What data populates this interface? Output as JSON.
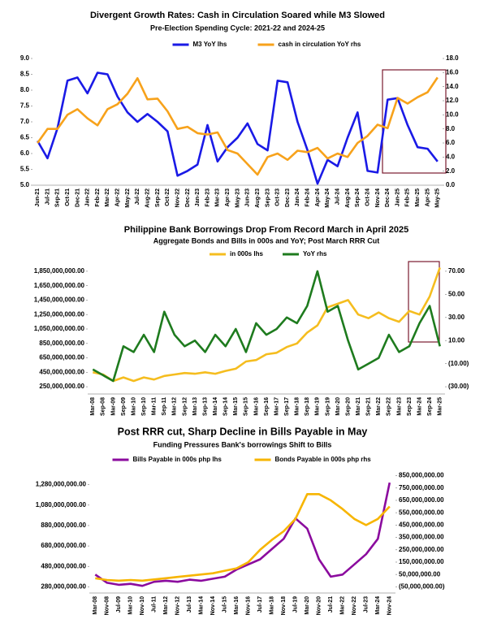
{
  "chart_data": [
    {
      "type": "line",
      "title": "Divergent Growth Rates: Cash in Circulation Soared while M3 Slowed",
      "subtitle": "Pre-Election Spending Cycle: 2021-22 and 2024-25",
      "categories": [
        "Jun-21",
        "Jul-21",
        "Sep-21",
        "Oct-21",
        "Dec-21",
        "Jan-22",
        "Feb-22",
        "Mar-22",
        "Apr-22",
        "May-22",
        "Jul-22",
        "Aug-22",
        "Sep-22",
        "Oct-22",
        "Nov-22",
        "Dec-22",
        "Jan-23",
        "Feb-23",
        "Mar-23",
        "Apr-23",
        "May-23",
        "Jun-23",
        "Aug-23",
        "Sep-23",
        "Oct-23",
        "Dec-23",
        "Jan-24",
        "Feb-24",
        "Apr-24",
        "May-24",
        "Jul-24",
        "Aug-24",
        "Sep-24",
        "Oct-24",
        "Nov-24",
        "Dec-24",
        "Jan-25",
        "Feb-25",
        "Mar-25",
        "Apr-25",
        "May-25"
      ],
      "series": [
        {
          "name": "M3 YoY lhs",
          "color": "#1a1ae6",
          "values": [
            6.4,
            5.85,
            6.8,
            8.3,
            8.4,
            7.9,
            8.55,
            8.5,
            7.8,
            7.3,
            7.0,
            7.25,
            7.0,
            6.7,
            5.3,
            5.45,
            5.65,
            6.9,
            5.75,
            6.2,
            6.5,
            6.95,
            6.3,
            6.1,
            8.3,
            8.25,
            7.0,
            6.1,
            5.05,
            5.8,
            5.6,
            6.5,
            7.3,
            5.45,
            5.4,
            7.7,
            7.75,
            6.9,
            6.2,
            6.15,
            5.75
          ]
        },
        {
          "name": "cash in circulation YoY rhs",
          "color": "#f7a21b",
          "axis": "y2",
          "values": [
            6.0,
            8.0,
            8.0,
            10.0,
            10.8,
            9.5,
            8.5,
            10.8,
            11.5,
            13.0,
            15.2,
            12.2,
            12.3,
            10.5,
            8.0,
            8.3,
            7.4,
            7.2,
            7.5,
            5.0,
            4.5,
            3.0,
            1.5,
            4.0,
            4.5,
            3.6,
            4.9,
            4.7,
            5.3,
            3.8,
            4.5,
            4.0,
            6.0,
            7.0,
            8.6,
            8.1,
            12.4,
            11.6,
            12.5,
            13.2,
            15.3
          ]
        }
      ],
      "ylim": [
        5,
        9
      ],
      "yticks": [
        {
          "value": 5,
          "label": "5.0"
        },
        5.5,
        {
          "value": 6,
          "label": "6.0"
        },
        6.5,
        {
          "value": 7,
          "label": "7.0"
        },
        7.5,
        {
          "value": 8,
          "label": "8.0"
        },
        8.5,
        {
          "value": 9,
          "label": "9.0"
        }
      ],
      "y2lim": [
        0,
        18
      ],
      "y2ticks": [
        {
          "value": 0,
          "label": "0.0"
        },
        {
          "value": 2,
          "label": "2.0"
        },
        {
          "value": 4,
          "label": "4.0"
        },
        {
          "value": 6,
          "label": "6.0"
        },
        {
          "value": 8,
          "label": "8.0"
        },
        {
          "value": 10,
          "label": "10.0"
        },
        {
          "value": 12,
          "label": "12.0"
        },
        {
          "value": 14,
          "label": "14.0"
        },
        {
          "value": 16,
          "label": "16.0"
        },
        {
          "value": 18,
          "label": "18.0"
        }
      ],
      "legend": "top"
    },
    {
      "type": "line",
      "title": "Philippine Bank Borrowings Drop From Record March in April 2025",
      "subtitle": "Aggregate Bonds and Bills in 000s and YoY; Post March RRR Cut",
      "categories": [
        "Mar-08",
        "Sep-08",
        "Mar-09",
        "Sep-09",
        "Mar-10",
        "Sep-10",
        "Mar-11",
        "Sep-11",
        "Mar-12",
        "Sep-12",
        "Mar-13",
        "Sep-13",
        "Mar-14",
        "Sep-14",
        "Mar-15",
        "Sep-15",
        "Mar-16",
        "Sep-16",
        "Mar-17",
        "Sep-17",
        "Mar-18",
        "Sep-18",
        "Mar-19",
        "Sep-19",
        "Mar-20",
        "Sep-20",
        "Mar-21",
        "Sep-21",
        "Mar-22",
        "Sep-22",
        "Mar-23",
        "Sep-23",
        "Mar-24",
        "Sep-24",
        "Mar-25"
      ],
      "series": [
        {
          "name": "in 000s lhs",
          "color": "#f5bd1f",
          "values": [
            450000000,
            420000000,
            330000000,
            380000000,
            330000000,
            380000000,
            350000000,
            400000000,
            420000000,
            440000000,
            430000000,
            450000000,
            430000000,
            470000000,
            500000000,
            600000000,
            620000000,
            700000000,
            720000000,
            800000000,
            850000000,
            1000000000,
            1100000000,
            1350000000,
            1400000000,
            1450000000,
            1250000000,
            1200000000,
            1280000000,
            1200000000,
            1150000000,
            1300000000,
            1250000000,
            1500000000,
            1900000000
          ]
        },
        {
          "name": "YoY rhs",
          "color": "#1e7b1e",
          "axis": "y2",
          "values": [
            -15,
            -20,
            -25,
            5,
            0,
            15,
            0,
            35,
            15,
            5,
            10,
            0,
            15,
            5,
            20,
            0,
            25,
            15,
            20,
            30,
            25,
            40,
            70,
            35,
            40,
            10,
            -15,
            -10,
            -5,
            15,
            0,
            5,
            25,
            40,
            5
          ]
        }
      ],
      "ylim": [
        150000000,
        1950000000
      ],
      "yticks": [
        {
          "value": 250000000,
          "label": "250,000,000.00"
        },
        {
          "value": 450000000,
          "label": "450,000,000.00"
        },
        {
          "value": 650000000,
          "label": "650,000,000.00"
        },
        {
          "value": 850000000,
          "label": "850,000,000.00"
        },
        {
          "value": 1050000000,
          "label": "1,050,000,000.00"
        },
        {
          "value": 1250000000,
          "label": "1,250,000,000.00"
        },
        {
          "value": 1450000000,
          "label": "1,450,000,000.00"
        },
        {
          "value": 1650000000,
          "label": "1,650,000,000.00"
        },
        {
          "value": 1850000000,
          "label": "1,850,000,000.00"
        }
      ],
      "y2lim": [
        -36.25,
        76.25
      ],
      "y2ticks": [
        {
          "value": -30,
          "label": "(30.00)"
        },
        {
          "value": -10,
          "label": "(10.00)"
        },
        {
          "value": 10,
          "label": "10.00"
        },
        {
          "value": 30,
          "label": "30.00"
        },
        {
          "value": 50,
          "label": "50.00"
        },
        {
          "value": 70,
          "label": "70.00"
        }
      ],
      "legend": "top"
    },
    {
      "type": "line",
      "title": "Post RRR cut, Sharp Decline in Bills Payable in May",
      "subtitle": "Funding Pressures Bank's borrowings Shift to Bills",
      "categories": [
        "Mar-08",
        "Nov-08",
        "Jul-09",
        "Mar-10",
        "Nov-10",
        "Jul-11",
        "Mar-12",
        "Nov-12",
        "Jul-13",
        "Mar-14",
        "Nov-14",
        "Jul-15",
        "Mar-16",
        "Nov-16",
        "Jul-17",
        "Mar-18",
        "Nov-18",
        "Jul-19",
        "Mar-20",
        "Nov-20",
        "Jul-21",
        "Mar-22",
        "Nov-22",
        "Jul-23",
        "Mar-24",
        "Nov-24"
      ],
      "series": [
        {
          "name": "Bills Payable in 000s php lhs",
          "color": "#8b0b9e",
          "values": [
            400000000,
            320000000,
            300000000,
            310000000,
            290000000,
            330000000,
            340000000,
            330000000,
            350000000,
            340000000,
            360000000,
            380000000,
            450000000,
            500000000,
            550000000,
            650000000,
            750000000,
            950000000,
            850000000,
            550000000,
            380000000,
            400000000,
            500000000,
            600000000,
            750000000,
            1300000000
          ]
        },
        {
          "name": "Bonds Payable in 000s php rhs",
          "color": "#f7b500",
          "axis": "y2",
          "values": [
            20000000,
            5000000,
            0,
            5000000,
            0,
            10000000,
            20000000,
            30000000,
            40000000,
            50000000,
            60000000,
            80000000,
            100000000,
            150000000,
            250000000,
            330000000,
            400000000,
            500000000,
            700000000,
            700000000,
            650000000,
            580000000,
            500000000,
            450000000,
            500000000,
            600000000
          ]
        }
      ],
      "ylim": [
        220000000,
        1380000000
      ],
      "yticks": [
        {
          "value": 280000000,
          "label": "280,000,000.00"
        },
        {
          "value": 480000000,
          "label": "480,000,000.00"
        },
        {
          "value": 680000000,
          "label": "680,000,000.00"
        },
        {
          "value": 880000000,
          "label": "880,000,000.00"
        },
        {
          "value": 1080000000,
          "label": "1,080,000,000.00"
        },
        {
          "value": 1280000000,
          "label": "1,280,000,000.00"
        }
      ],
      "y2lim": [
        -100000000,
        860000000
      ],
      "y2ticks": [
        {
          "value": -50000000,
          "label": "(50,000,000.00)"
        },
        {
          "value": 50000000,
          "label": "50,000,000.00"
        },
        {
          "value": 150000000,
          "label": "150,000,000.00"
        },
        {
          "value": 250000000,
          "label": "250,000,000.00"
        },
        {
          "value": 350000000,
          "label": "350,000,000.00"
        },
        {
          "value": 450000000,
          "label": "450,000,000.00"
        },
        {
          "value": 550000000,
          "label": "550,000,000.00"
        },
        {
          "value": 650000000,
          "label": "650,000,000.00"
        },
        {
          "value": 750000000,
          "label": "750,000,000.00"
        },
        {
          "value": 850000000,
          "label": "850,000,000.00"
        }
      ],
      "legend": "top"
    }
  ]
}
